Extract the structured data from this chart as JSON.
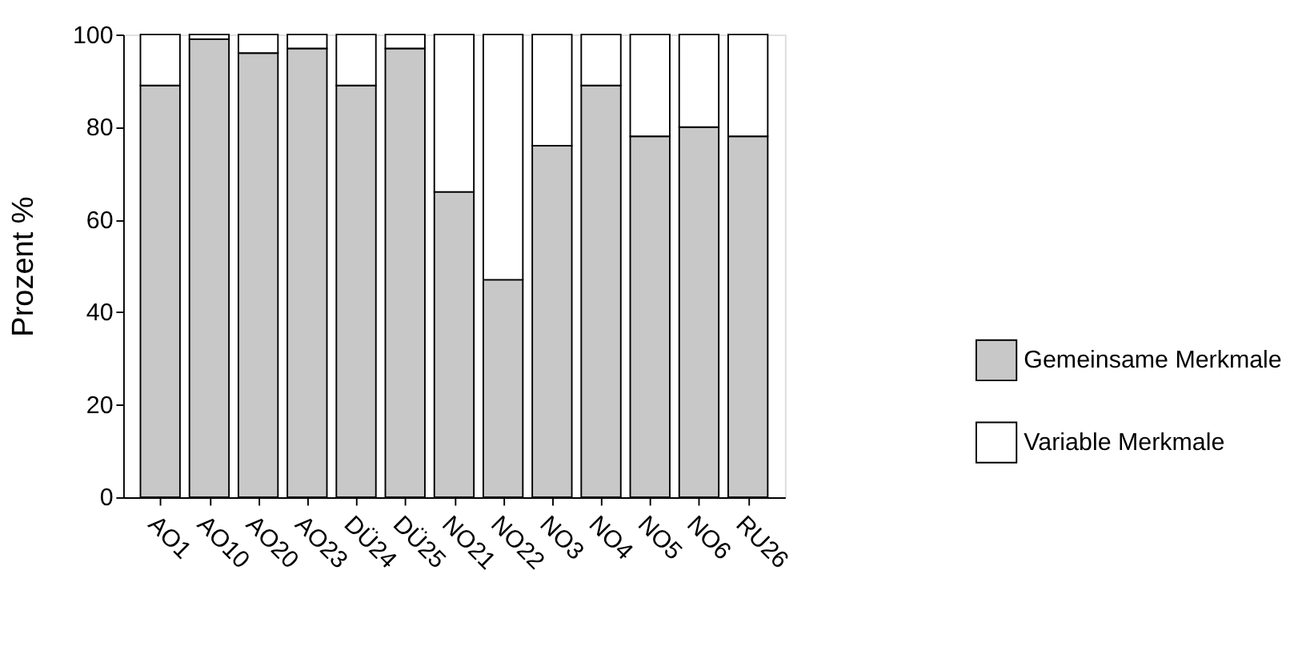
{
  "chart_data": {
    "type": "bar",
    "stacked": true,
    "ylabel": "Prozent %",
    "categories": [
      "AO1",
      "AO10",
      "AO20",
      "AO23",
      "DÜ24",
      "DÜ25",
      "NO21",
      "NO22",
      "NO3",
      "NO4",
      "NO5",
      "NO6",
      "RU26"
    ],
    "series": [
      {
        "name": "Gemeinsame Merkmale",
        "color": "#c8c8c8",
        "values": [
          89,
          99,
          96,
          97,
          89,
          97,
          66,
          47,
          76,
          89,
          78,
          80,
          78
        ]
      },
      {
        "name": "Variable Merkmale",
        "color": "#ffffff",
        "values": [
          11,
          1,
          4,
          3,
          11,
          3,
          34,
          53,
          24,
          11,
          22,
          20,
          22
        ]
      }
    ],
    "ylim": [
      0,
      100
    ],
    "yticks": [
      0,
      20,
      40,
      60,
      80,
      100
    ],
    "grid": false,
    "legend": "bottom right"
  }
}
